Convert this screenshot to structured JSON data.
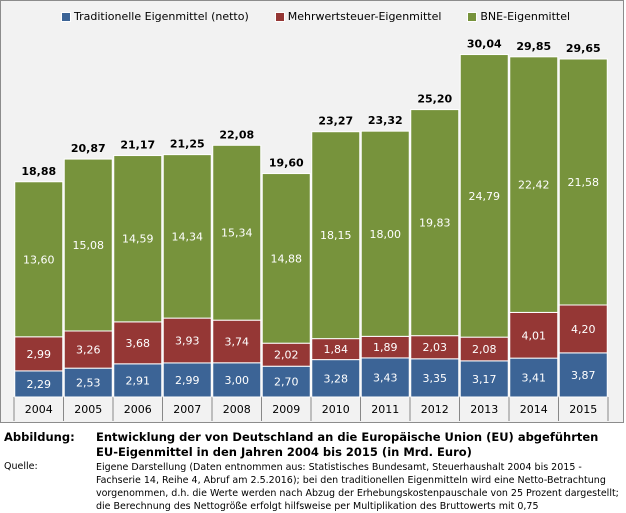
{
  "chart_data": {
    "type": "bar",
    "stacked": true,
    "title": "",
    "xlabel": "",
    "ylabel": "",
    "ylim": [
      0,
      34
    ],
    "grid": false,
    "legend_position": "top",
    "categories": [
      "2004",
      "2005",
      "2006",
      "2007",
      "2008",
      "2009",
      "2010",
      "2011",
      "2012",
      "2013",
      "2014",
      "2015"
    ],
    "series": [
      {
        "name": "Traditionelle Eigenmittel (netto)",
        "color": "#3c6496",
        "values": [
          2.29,
          2.53,
          2.91,
          2.99,
          3.0,
          2.7,
          3.28,
          3.43,
          3.35,
          3.17,
          3.41,
          3.87
        ],
        "labels": [
          "2,29",
          "2,53",
          "2,91",
          "2,99",
          "3,00",
          "2,70",
          "3,28",
          "3,43",
          "3,35",
          "3,17",
          "3,41",
          "3,87"
        ]
      },
      {
        "name": "Mehrwertsteuer-Eigenmittel",
        "color": "#953735",
        "values": [
          2.99,
          3.26,
          3.68,
          3.93,
          3.74,
          2.02,
          1.84,
          1.89,
          2.03,
          2.08,
          4.01,
          4.2
        ],
        "labels": [
          "2,99",
          "3,26",
          "3,68",
          "3,93",
          "3,74",
          "2,02",
          "1,84",
          "1,89",
          "2,03",
          "2,08",
          "4,01",
          "4,20"
        ]
      },
      {
        "name": "BNE-Eigenmittel",
        "color": "#77933c",
        "values": [
          13.6,
          15.08,
          14.59,
          14.34,
          15.34,
          14.88,
          18.15,
          18.0,
          19.83,
          24.79,
          22.42,
          21.58
        ],
        "labels": [
          "13,60",
          "15,08",
          "14,59",
          "14,34",
          "15,34",
          "14,88",
          "18,15",
          "18,00",
          "19,83",
          "24,79",
          "22,42",
          "21,58"
        ]
      }
    ],
    "totals": [
      18.88,
      20.87,
      21.17,
      21.25,
      22.08,
      19.6,
      23.27,
      23.32,
      25.2,
      30.04,
      29.85,
      29.65
    ],
    "total_labels": [
      "18,88",
      "20,87",
      "21,17",
      "21,25",
      "22,08",
      "19,60",
      "23,27",
      "23,32",
      "25,20",
      "30,04",
      "29,85",
      "29,65"
    ]
  },
  "caption": {
    "label": "Abbildung:",
    "title": "Entwicklung der von Deutschland an die Europäische Union (EU) abgeführten EU-Eigenmittel in den Jahren 2004 bis 2015 (in Mrd. Euro)",
    "source_label": "Quelle:",
    "source_text": "Eigene Darstellung (Daten entnommen aus: Statistisches Bundesamt, Steuerhaushalt 2004 bis 2015 - Fachserie 14, Reihe 4, Abruf am 2.5.2016);  bei den traditionellen Eigenmitteln wird eine Netto-Betrachtung vorgenommen, d.h. die Werte werden nach Abzug der Erhebungskostenpauschale von 25 Prozent dargestellt; die Berechnung des Nettogröße erfolgt hilfsweise per Multiplikation des Bruttowerts mit 0,75"
  }
}
